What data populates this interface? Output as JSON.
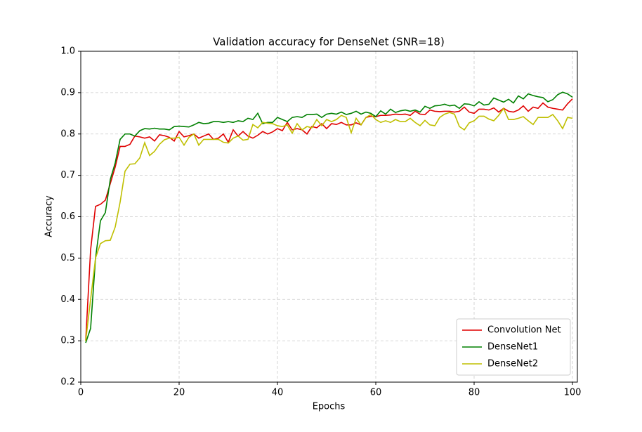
{
  "chart_data": {
    "type": "line",
    "title": "Validation accuracy for DenseNet (SNR=18)",
    "x_label": "Epochs",
    "y_label": "Accuracy",
    "x": [
      1,
      2,
      3,
      4,
      5,
      6,
      7,
      8,
      9,
      10,
      11,
      12,
      13,
      14,
      15,
      16,
      17,
      18,
      19,
      20,
      21,
      22,
      23,
      24,
      25,
      26,
      27,
      28,
      29,
      30,
      31,
      32,
      33,
      34,
      35,
      36,
      37,
      38,
      39,
      40,
      41,
      42,
      43,
      44,
      45,
      46,
      47,
      48,
      49,
      50,
      51,
      52,
      53,
      54,
      55,
      56,
      57,
      58,
      59,
      60,
      61,
      62,
      63,
      64,
      65,
      66,
      67,
      68,
      69,
      70,
      71,
      72,
      73,
      74,
      75,
      76,
      77,
      78,
      79,
      80,
      81,
      82,
      83,
      84,
      85,
      86,
      87,
      88,
      89,
      90,
      91,
      92,
      93,
      94,
      95,
      96,
      97,
      98,
      99,
      100
    ],
    "series": [
      {
        "name": "Convolution Net",
        "color": "#e00000",
        "values": [
          0.3,
          0.52,
          0.625,
          0.63,
          0.64,
          0.68,
          0.72,
          0.77,
          0.77,
          0.775,
          0.795,
          0.793,
          0.79,
          0.793,
          0.783,
          0.798,
          0.796,
          0.792,
          0.783,
          0.806,
          0.793,
          0.796,
          0.8,
          0.79,
          0.795,
          0.8,
          0.787,
          0.79,
          0.8,
          0.78,
          0.81,
          0.795,
          0.806,
          0.795,
          0.79,
          0.797,
          0.806,
          0.8,
          0.805,
          0.813,
          0.808,
          0.828,
          0.81,
          0.813,
          0.81,
          0.8,
          0.818,
          0.815,
          0.825,
          0.813,
          0.825,
          0.823,
          0.828,
          0.822,
          0.822,
          0.827,
          0.822,
          0.84,
          0.843,
          0.842,
          0.845,
          0.845,
          0.846,
          0.848,
          0.847,
          0.848,
          0.845,
          0.855,
          0.848,
          0.847,
          0.858,
          0.855,
          0.854,
          0.855,
          0.855,
          0.853,
          0.855,
          0.865,
          0.853,
          0.85,
          0.86,
          0.86,
          0.858,
          0.863,
          0.853,
          0.862,
          0.855,
          0.853,
          0.858,
          0.868,
          0.855,
          0.865,
          0.862,
          0.875,
          0.865,
          0.862,
          0.86,
          0.858,
          0.873,
          0.885
        ]
      },
      {
        "name": "DenseNet1",
        "color": "#008000",
        "values": [
          0.295,
          0.33,
          0.5,
          0.59,
          0.61,
          0.69,
          0.73,
          0.787,
          0.8,
          0.8,
          0.795,
          0.808,
          0.813,
          0.812,
          0.814,
          0.812,
          0.812,
          0.81,
          0.818,
          0.819,
          0.818,
          0.817,
          0.822,
          0.828,
          0.825,
          0.826,
          0.83,
          0.83,
          0.828,
          0.83,
          0.828,
          0.832,
          0.83,
          0.838,
          0.835,
          0.85,
          0.825,
          0.828,
          0.828,
          0.84,
          0.835,
          0.83,
          0.84,
          0.842,
          0.84,
          0.847,
          0.847,
          0.848,
          0.84,
          0.848,
          0.85,
          0.848,
          0.853,
          0.847,
          0.85,
          0.855,
          0.848,
          0.853,
          0.85,
          0.842,
          0.856,
          0.848,
          0.86,
          0.852,
          0.856,
          0.858,
          0.855,
          0.858,
          0.853,
          0.867,
          0.862,
          0.868,
          0.869,
          0.872,
          0.868,
          0.87,
          0.862,
          0.873,
          0.872,
          0.868,
          0.878,
          0.87,
          0.872,
          0.887,
          0.882,
          0.877,
          0.884,
          0.875,
          0.892,
          0.885,
          0.897,
          0.893,
          0.89,
          0.888,
          0.878,
          0.883,
          0.895,
          0.901,
          0.897,
          0.889
        ]
      },
      {
        "name": "DenseNet2",
        "color": "#bfbf00",
        "values": [
          0.3,
          0.4,
          0.5,
          0.535,
          0.542,
          0.543,
          0.575,
          0.635,
          0.71,
          0.727,
          0.728,
          0.742,
          0.779,
          0.748,
          0.758,
          0.775,
          0.786,
          0.79,
          0.79,
          0.792,
          0.773,
          0.792,
          0.8,
          0.773,
          0.787,
          0.787,
          0.787,
          0.787,
          0.78,
          0.778,
          0.79,
          0.795,
          0.785,
          0.787,
          0.823,
          0.815,
          0.828,
          0.826,
          0.825,
          0.82,
          0.818,
          0.822,
          0.802,
          0.825,
          0.81,
          0.818,
          0.815,
          0.835,
          0.82,
          0.835,
          0.83,
          0.835,
          0.845,
          0.84,
          0.803,
          0.838,
          0.822,
          0.84,
          0.847,
          0.835,
          0.828,
          0.832,
          0.828,
          0.835,
          0.83,
          0.83,
          0.838,
          0.828,
          0.82,
          0.833,
          0.822,
          0.82,
          0.84,
          0.848,
          0.852,
          0.848,
          0.818,
          0.81,
          0.827,
          0.832,
          0.843,
          0.843,
          0.836,
          0.832,
          0.845,
          0.862,
          0.835,
          0.835,
          0.838,
          0.842,
          0.832,
          0.823,
          0.84,
          0.84,
          0.84,
          0.847,
          0.832,
          0.813,
          0.84,
          0.838
        ]
      }
    ],
    "xlim": [
      0,
      101
    ],
    "ylim": [
      0.2,
      1.0
    ],
    "xticks": [
      0,
      20,
      40,
      60,
      80,
      100
    ],
    "yticks": [
      0.2,
      0.3,
      0.4,
      0.5,
      0.6,
      0.7,
      0.8,
      0.9,
      {
        "value": 1,
        "label": "1.0"
      }
    ],
    "grid": true,
    "legend": "lower right"
  }
}
